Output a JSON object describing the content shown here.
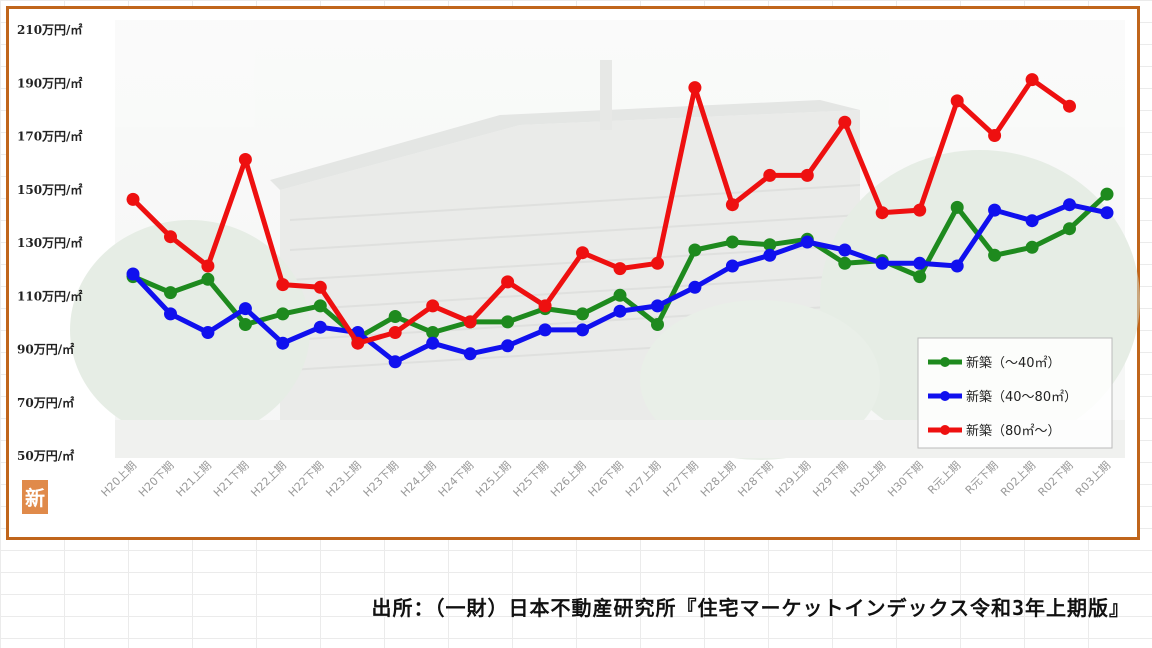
{
  "chart_data": {
    "type": "line",
    "y_tick_labels": [
      "210万円/㎡",
      "190万円/㎡",
      "170万円/㎡",
      "150万円/㎡",
      "130万円/㎡",
      "110万円/㎡",
      "90万円/㎡",
      "70万円/㎡",
      "50万円/㎡"
    ],
    "y_ticks": [
      210,
      190,
      170,
      150,
      130,
      110,
      90,
      70,
      50
    ],
    "ylim": [
      50,
      210
    ],
    "categories": [
      "H20上期",
      "H20下期",
      "H21上期",
      "H21下期",
      "H22上期",
      "H22下期",
      "H23上期",
      "H23下期",
      "H24上期",
      "H24下期",
      "H25上期",
      "H25下期",
      "H26上期",
      "H26下期",
      "H27上期",
      "H27下期",
      "H28上期",
      "H28下期",
      "H29上期",
      "H29下期",
      "H30上期",
      "H30下期",
      "R元上期",
      "R元下期",
      "R02上期",
      "R02下期",
      "R03上期"
    ],
    "series": [
      {
        "name": "新築（～40㎡）",
        "color": "#1e8a1e",
        "values": [
          117,
          111,
          116,
          99,
          103,
          106,
          94,
          102,
          96,
          100,
          100,
          105,
          103,
          110,
          99,
          127,
          130,
          129,
          131,
          122,
          123,
          117,
          143,
          125,
          128,
          135,
          148
        ]
      },
      {
        "name": "新築（40～80㎡）",
        "color": "#1010ee",
        "values": [
          118,
          103,
          96,
          105,
          92,
          98,
          96,
          85,
          92,
          88,
          91,
          97,
          97,
          104,
          106,
          113,
          121,
          125,
          130,
          127,
          122,
          122,
          121,
          142,
          138,
          144,
          141
        ]
      },
      {
        "name": "新築（80㎡～）",
        "color": "#ee1010",
        "values": [
          146,
          132,
          121,
          161,
          114,
          113,
          92,
          96,
          106,
          100,
          115,
          106,
          126,
          120,
          122,
          188,
          144,
          155,
          155,
          175,
          141,
          142,
          183,
          170,
          191,
          181,
          null
        ]
      }
    ],
    "legend_position": "bottom-right",
    "grid": false
  },
  "badge": {
    "label": "新"
  },
  "source_text": "出所：（一財）日本不動産研究所『住宅マーケットインデックス令和3年上期版』"
}
